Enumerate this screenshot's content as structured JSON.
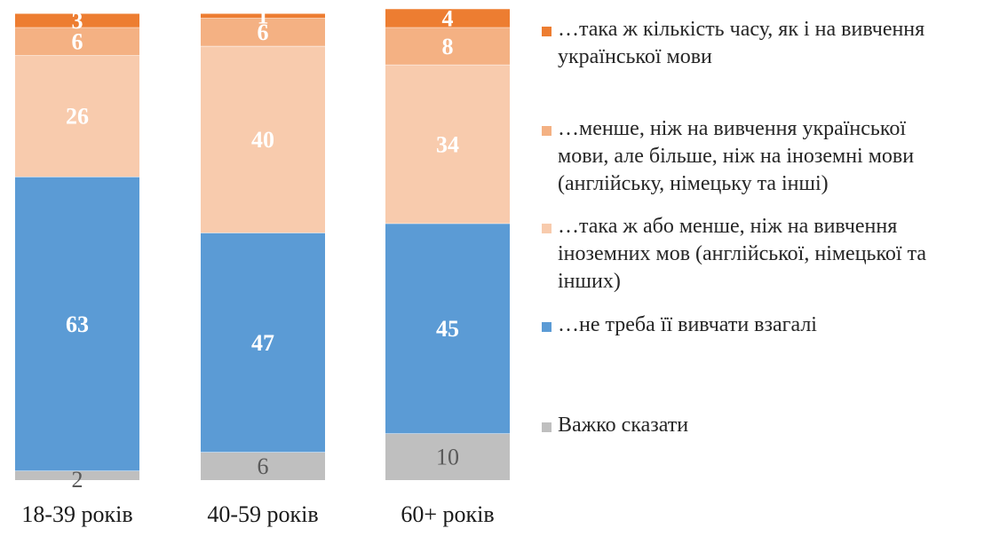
{
  "chart_data": {
    "type": "bar",
    "stacked": true,
    "orientation": "vertical",
    "categories": [
      "18-39 років",
      "40-59 років",
      "60+ років"
    ],
    "series": [
      {
        "name": "Важко сказати",
        "color": "#bfbfbf",
        "label_style": "plain-dark",
        "values": [
          2,
          6,
          10
        ]
      },
      {
        "name": "…не треба її вивчати взагалі",
        "color": "#5b9bd5",
        "label_style": "bold-white",
        "values": [
          63,
          47,
          45
        ]
      },
      {
        "name": "…така ж або менше, ніж на вивчення іноземних мов (англійської, німецької та інших)",
        "color": "#f8cbad",
        "label_style": "bold-white",
        "values": [
          26,
          40,
          34
        ]
      },
      {
        "name": "…менше, ніж на вивчення української мови, але більше, ніж на іноземні мови (англійську, німецьку та інші)",
        "color": "#f4b183",
        "label_style": "bold-white",
        "values": [
          6,
          6,
          8
        ]
      },
      {
        "name": "…така ж кількість часу, як і на вивчення української мови",
        "color": "#ed7d31",
        "label_style": "bold-white",
        "values": [
          3,
          1,
          4
        ]
      }
    ],
    "legend": {
      "position": "right",
      "order": [
        4,
        3,
        2,
        1,
        0
      ],
      "lines": [
        [
          "…така ж кількість часу, як і на вивчення",
          "української мови"
        ],
        [
          "…менше, ніж на вивчення української",
          "мови, але більше, ніж на іноземні мови",
          "(англійську, німецьку та інші)"
        ],
        [
          "…така ж або менше, ніж на вивчення",
          "іноземних мов (англійської, німецької та",
          "інших)"
        ],
        [
          "…не треба її вивчати взагалі"
        ],
        [
          "Важко сказати"
        ]
      ]
    },
    "ylim": [
      0,
      100
    ],
    "grid": false,
    "title": "",
    "xlabel": "",
    "ylabel": ""
  }
}
